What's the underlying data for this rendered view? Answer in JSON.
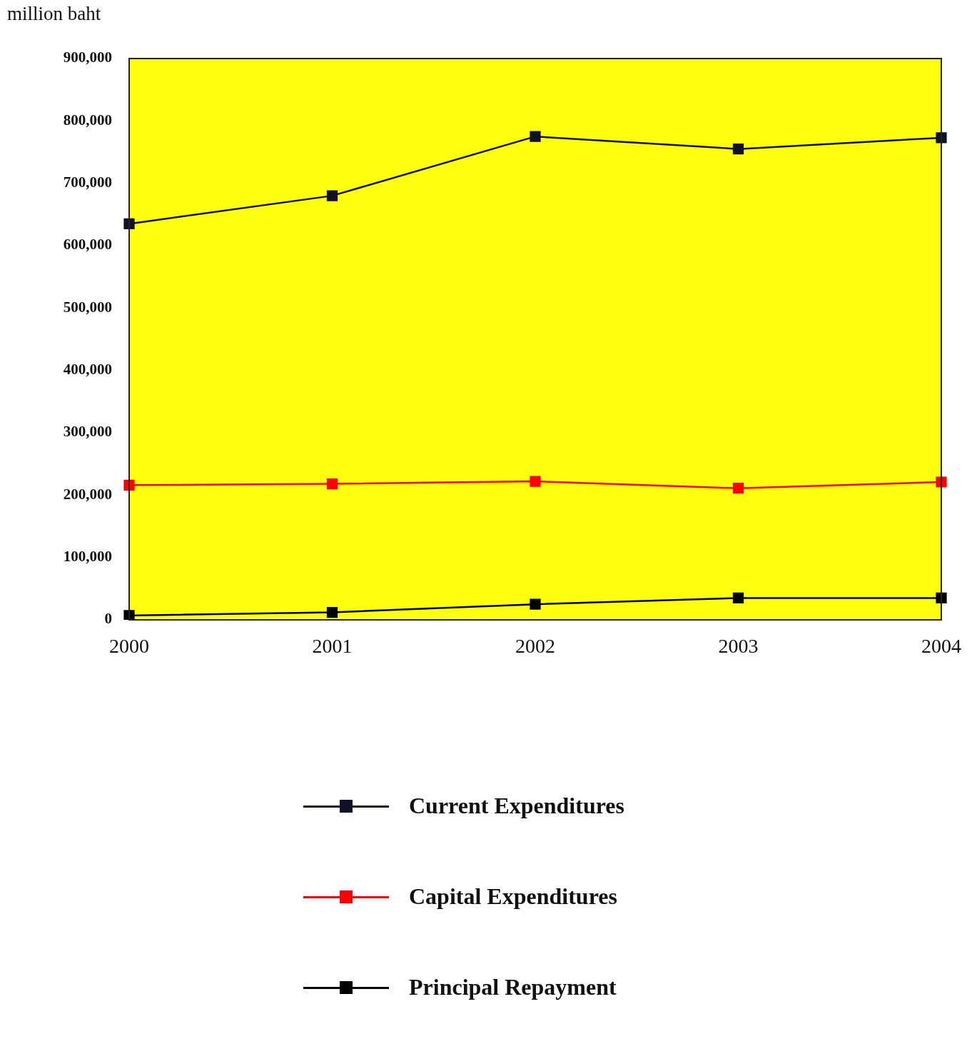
{
  "chart_data": {
    "type": "line",
    "ylabel": "million baht",
    "categories": [
      "2000",
      "2001",
      "2002",
      "2003",
      "2004"
    ],
    "series": [
      {
        "name": "Current Expenditures",
        "color": "#101028",
        "values": [
          635000,
          680000,
          775000,
          755000,
          773000
        ]
      },
      {
        "name": "Capital Expenditures",
        "color": "#ff0000",
        "values": [
          216000,
          218000,
          222000,
          211000,
          221000
        ]
      },
      {
        "name": "Principal Repayment",
        "color": "#000000",
        "values": [
          7000,
          12000,
          25000,
          35000,
          35000
        ]
      }
    ],
    "ylim": [
      0,
      900000
    ],
    "yticks": [
      {
        "value": 0,
        "label": "0"
      },
      {
        "value": 100000,
        "label": "100,000"
      },
      {
        "value": 200000,
        "label": "200,000"
      },
      {
        "value": 300000,
        "label": "300,000"
      },
      {
        "value": 400000,
        "label": "400,000"
      },
      {
        "value": 500000,
        "label": "500,000"
      },
      {
        "value": 600000,
        "label": "600,000"
      },
      {
        "value": 700000,
        "label": "700,000"
      },
      {
        "value": 800000,
        "label": "800,000"
      },
      {
        "value": 900000,
        "label": "900,000"
      }
    ],
    "grid": false,
    "legend": "bottom",
    "marker": "square",
    "line_style": "solid"
  }
}
